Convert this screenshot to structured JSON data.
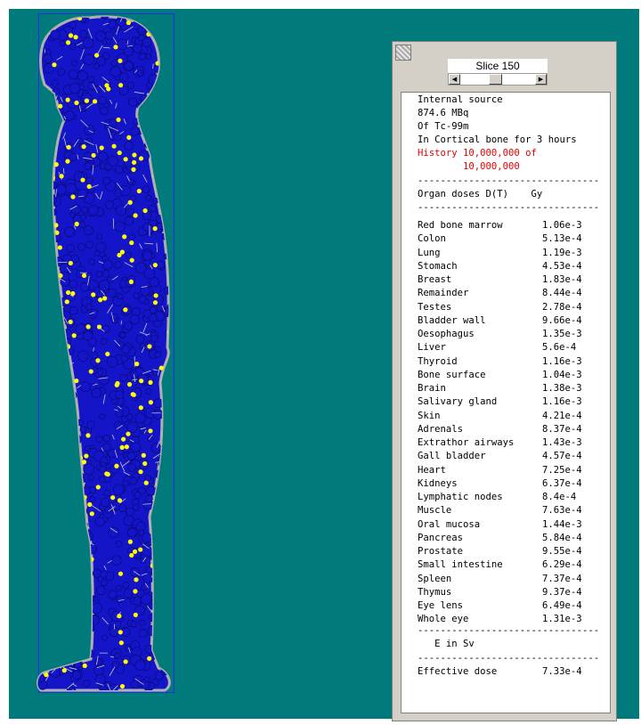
{
  "slider": {
    "label": "Slice 150",
    "left_arrow": "◀",
    "right_arrow": "▶",
    "position": 0.45
  },
  "source": {
    "line1": "Internal source",
    "line2": "874.6 MBq",
    "line3": "Of Tc-99m",
    "line4": "In Cortical bone for 3 hours",
    "history1": "History 10,000,000 of",
    "history2": "        10,000,000"
  },
  "separator": "--------------------------------",
  "organ_header": "Organ doses D(T)    Gy",
  "organs": [
    {
      "organ": "Red bone marrow",
      "dose": "1.06e-3"
    },
    {
      "organ": "Colon",
      "dose": "5.13e-4"
    },
    {
      "organ": "Lung",
      "dose": "1.19e-3"
    },
    {
      "organ": "Stomach",
      "dose": "4.53e-4"
    },
    {
      "organ": "Breast",
      "dose": "1.83e-4"
    },
    {
      "organ": "Remainder",
      "dose": "8.44e-4"
    },
    {
      "organ": "Testes",
      "dose": "2.78e-4"
    },
    {
      "organ": "Bladder wall",
      "dose": "9.66e-4"
    },
    {
      "organ": "Oesophagus",
      "dose": "1.35e-3"
    },
    {
      "organ": "Liver",
      "dose": "5.6e-4"
    },
    {
      "organ": "Thyroid",
      "dose": "1.16e-3"
    },
    {
      "organ": "Bone surface",
      "dose": "1.04e-3"
    },
    {
      "organ": "Brain",
      "dose": "1.38e-3"
    },
    {
      "organ": "Salivary gland",
      "dose": "1.16e-3"
    },
    {
      "organ": "Skin",
      "dose": "4.21e-4"
    },
    {
      "organ": "Adrenals",
      "dose": "8.37e-4"
    },
    {
      "organ": "Extrathor airways",
      "dose": "1.43e-3"
    },
    {
      "organ": "Gall bladder",
      "dose": "4.57e-4"
    },
    {
      "organ": "Heart",
      "dose": "7.25e-4"
    },
    {
      "organ": "Kidneys",
      "dose": "6.37e-4"
    },
    {
      "organ": "Lymphatic nodes",
      "dose": "8.4e-4"
    },
    {
      "organ": "Muscle",
      "dose": "7.63e-4"
    },
    {
      "organ": "Oral mucosa",
      "dose": "1.44e-3"
    },
    {
      "organ": "Pancreas",
      "dose": "5.84e-4"
    },
    {
      "organ": "Prostate",
      "dose": "9.55e-4"
    },
    {
      "organ": "Small intestine",
      "dose": "6.29e-4"
    },
    {
      "organ": "Spleen",
      "dose": "7.37e-4"
    },
    {
      "organ": "Thymus",
      "dose": "9.37e-4"
    },
    {
      "organ": "Eye lens",
      "dose": "6.49e-4"
    },
    {
      "organ": "Whole eye",
      "dose": "1.31e-3"
    }
  ],
  "e_header": "   E in Sv",
  "effective": {
    "label": "Effective dose",
    "value": "7.33e-4"
  },
  "colors": {
    "background": "#007a7a",
    "body": "#1414c8",
    "body_outline": "#0a0a78",
    "dot": "#ffff00",
    "track": "#c8c8c8",
    "history": "#e60000"
  }
}
